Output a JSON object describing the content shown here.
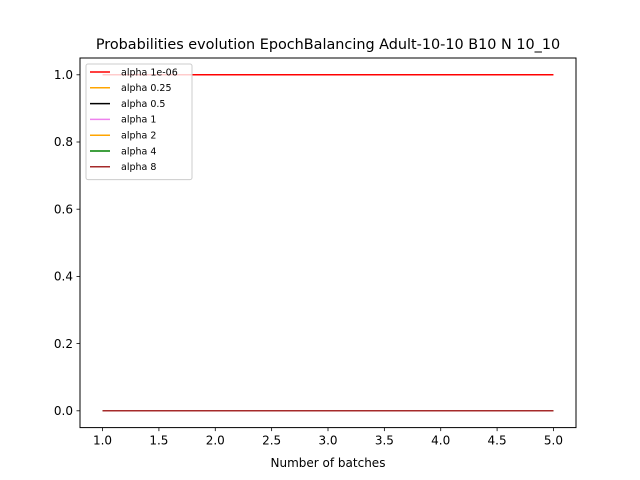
{
  "chart_data": {
    "type": "line",
    "title": "Probabilities evolution EpochBalancing Adult-10-10 B10 N 10_10",
    "xlabel": "Number of batches",
    "ylabel": "",
    "xlim": [
      0.8,
      5.2
    ],
    "ylim": [
      -0.05,
      1.05
    ],
    "xticks": [
      1.0,
      1.5,
      2.0,
      2.5,
      3.0,
      3.5,
      4.0,
      4.5,
      5.0
    ],
    "xtick_labels": [
      "1.0",
      "1.5",
      "2.0",
      "2.5",
      "3.0",
      "3.5",
      "4.0",
      "4.5",
      "5.0"
    ],
    "yticks": [
      0.0,
      0.2,
      0.4,
      0.6,
      0.8,
      1.0
    ],
    "ytick_labels": [
      "0.0",
      "0.2",
      "0.4",
      "0.6",
      "0.8",
      "1.0"
    ],
    "grid": false,
    "legend_position": "top-left",
    "x": [
      1,
      2,
      3,
      4,
      5
    ],
    "series": [
      {
        "name": "alpha 1e-06",
        "color": "#ff0000",
        "values": [
          1.0,
          1.0,
          1.0,
          1.0,
          1.0
        ]
      },
      {
        "name": "alpha 0.25",
        "color": "#ffa500",
        "values": [
          0.0,
          0.0,
          0.0,
          0.0,
          0.0
        ]
      },
      {
        "name": "alpha 0.5",
        "color": "#000000",
        "values": [
          0.0,
          0.0,
          0.0,
          0.0,
          0.0
        ]
      },
      {
        "name": "alpha 1",
        "color": "#ee82ee",
        "values": [
          0.0,
          0.0,
          0.0,
          0.0,
          0.0
        ]
      },
      {
        "name": "alpha 2",
        "color": "#ffa500",
        "values": [
          0.0,
          0.0,
          0.0,
          0.0,
          0.0
        ]
      },
      {
        "name": "alpha 4",
        "color": "#008000",
        "values": [
          0.0,
          0.0,
          0.0,
          0.0,
          0.0
        ]
      },
      {
        "name": "alpha 8",
        "color": "#a52a2a",
        "values": [
          0.0,
          0.0,
          0.0,
          0.0,
          0.0
        ]
      }
    ]
  }
}
